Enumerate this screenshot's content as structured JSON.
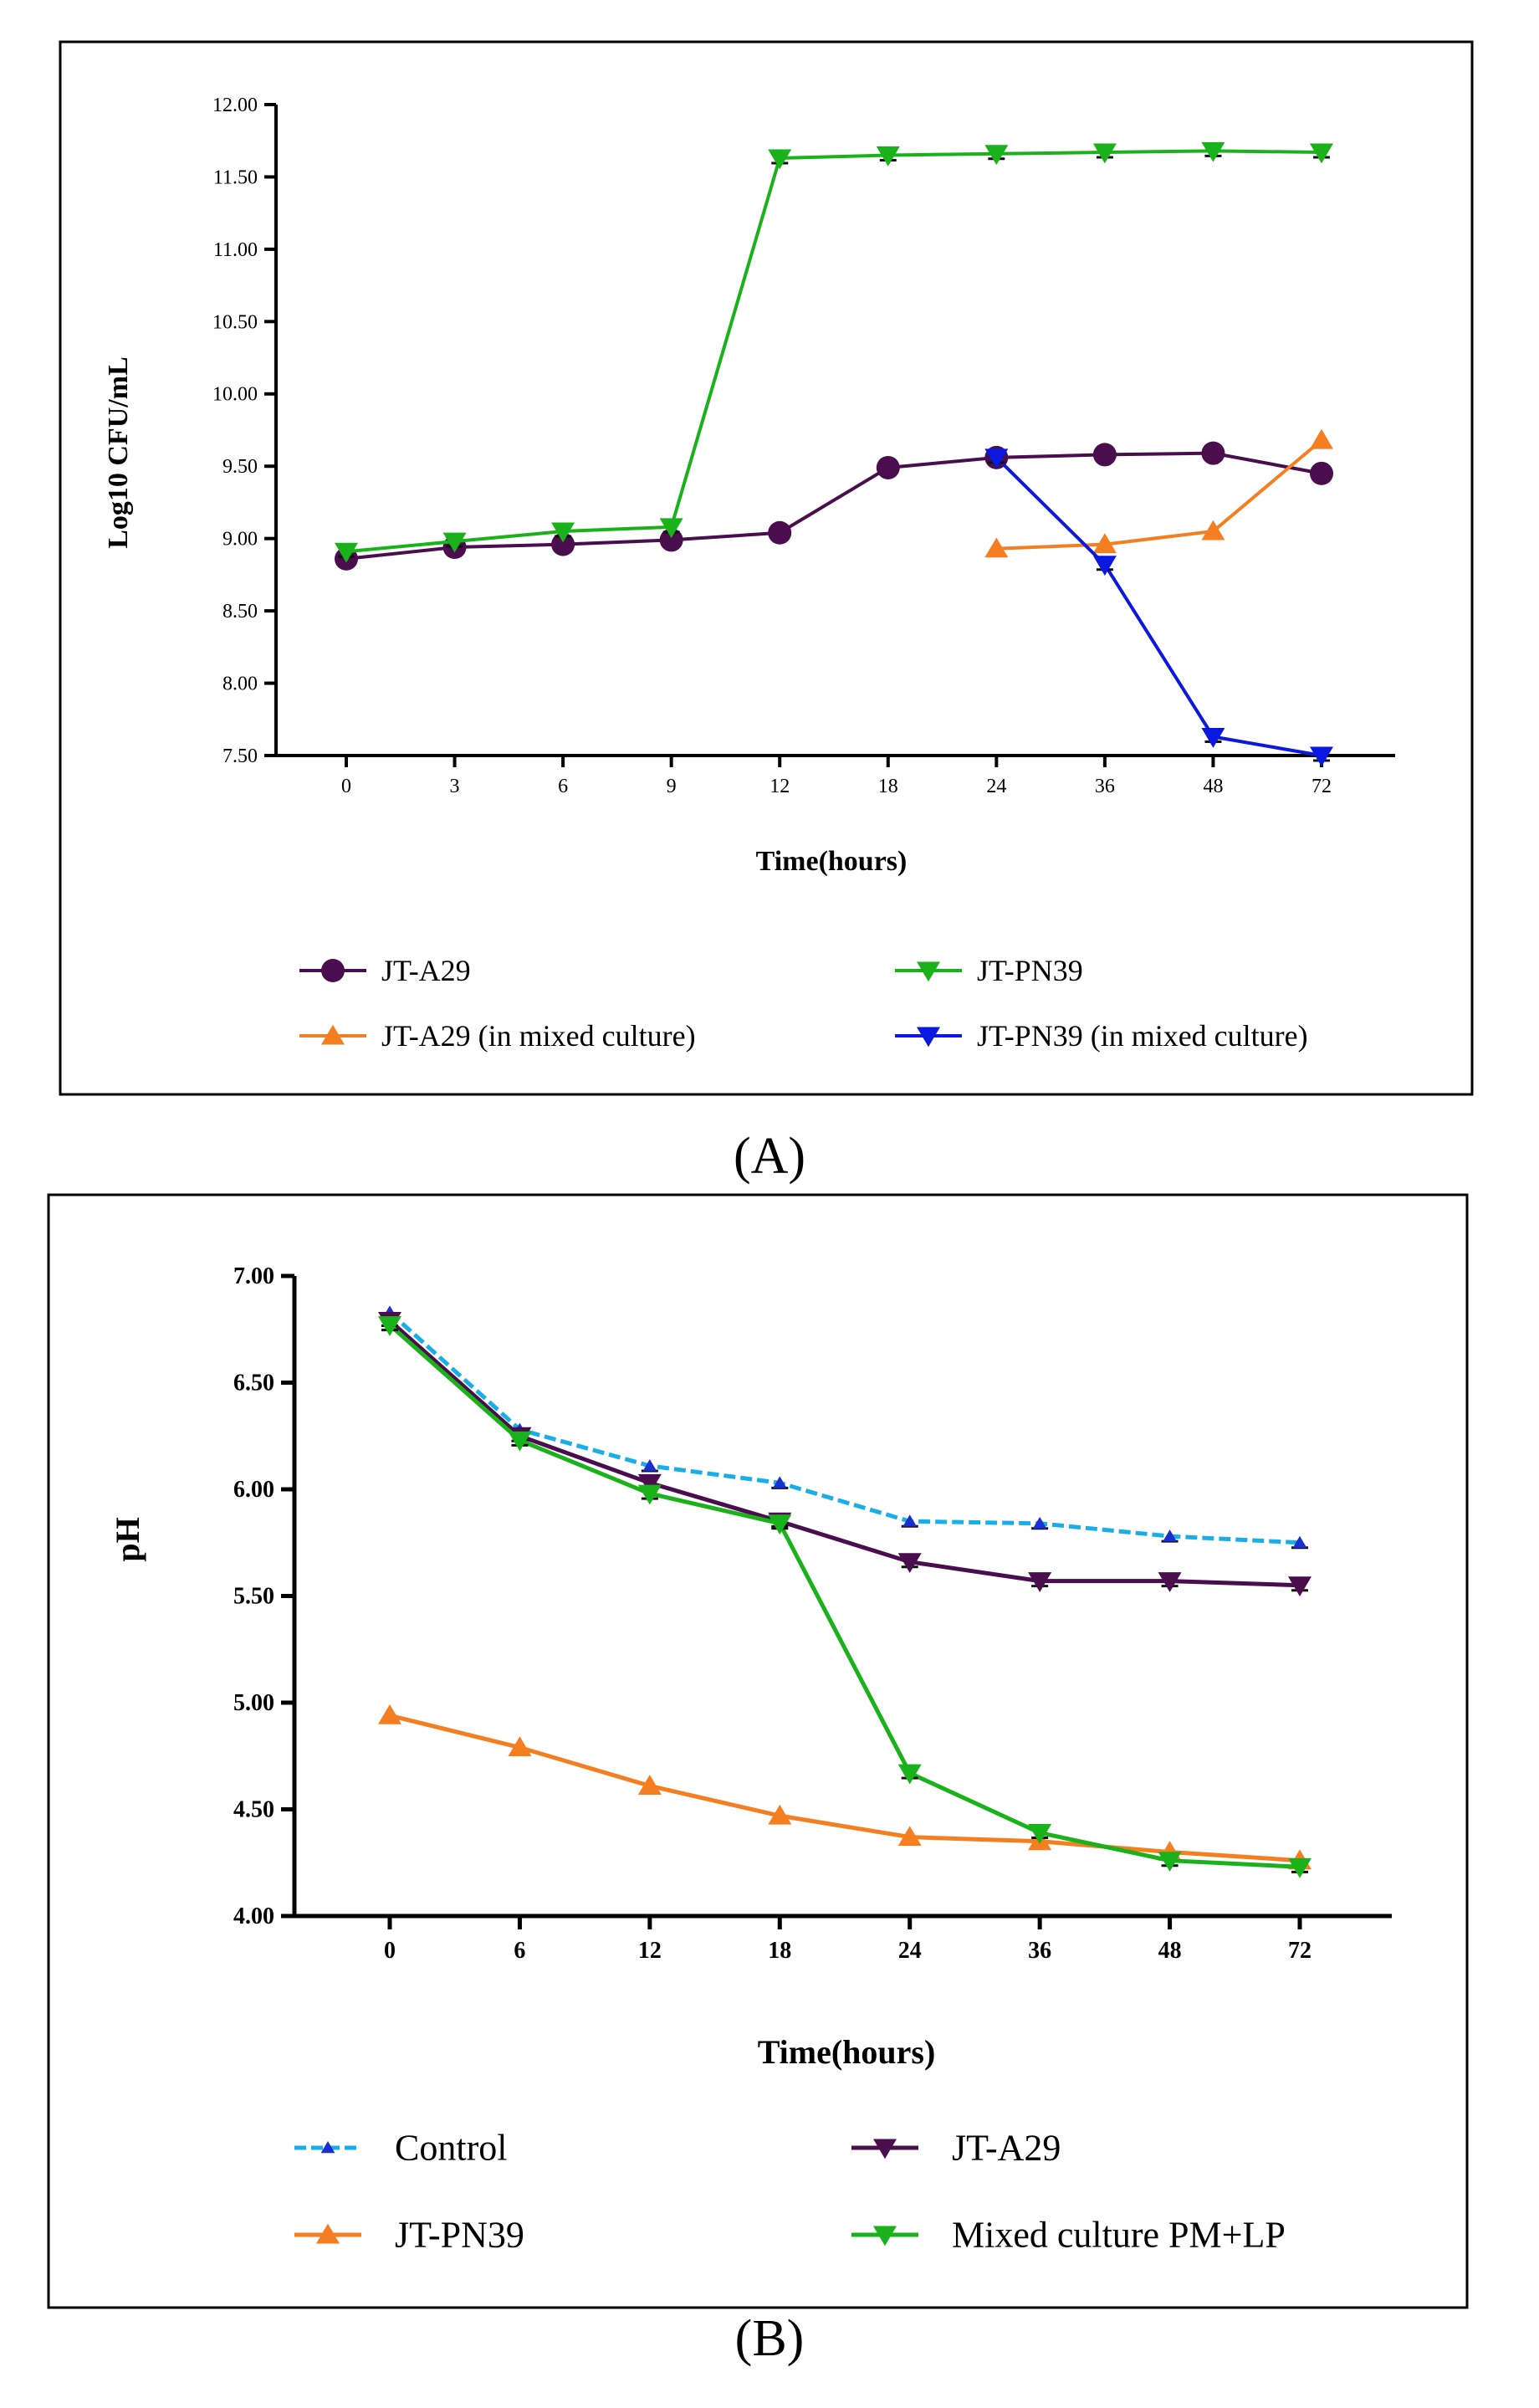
{
  "colors": {
    "jt_a29": "#4a0d4e",
    "jt_pn39": "#1ab21a",
    "jt_a29_mixed": "#f57f20",
    "jt_pn39_mixed": "#0a18e0",
    "control": "#1aaee8",
    "frame": "#000000"
  },
  "chart_data": [
    {
      "type": "line",
      "panel_label": "(A)",
      "ylabel": "Log10 CFU/mL",
      "xlabel": "Time(hours)",
      "categories": [
        "0",
        "3",
        "6",
        "9",
        "12",
        "18",
        "24",
        "36",
        "48",
        "72"
      ],
      "ylim": [
        7.5,
        12.0
      ],
      "yticks": [
        "7.50",
        "8.00",
        "8.50",
        "9.00",
        "9.50",
        "10.00",
        "10.50",
        "11.00",
        "11.50",
        "12.00"
      ],
      "grid": false,
      "legend_placement": "bottom",
      "series": [
        {
          "name": "JT-A29",
          "marker": "circle",
          "color_key": "jt_a29",
          "values": [
            8.86,
            8.94,
            8.96,
            8.99,
            9.04,
            9.49,
            9.56,
            9.58,
            9.59,
            9.45
          ]
        },
        {
          "name": "JT-PN39",
          "marker": "triangle-down",
          "color_key": "jt_pn39",
          "values": [
            8.91,
            8.98,
            9.05,
            9.08,
            11.63,
            11.65,
            11.66,
            11.67,
            11.68,
            11.67
          ]
        },
        {
          "name": "JT-A29 (in mixed culture)",
          "marker": "triangle-up",
          "color_key": "jt_a29_mixed",
          "values": [
            null,
            null,
            null,
            null,
            null,
            null,
            8.93,
            8.96,
            9.05,
            9.68
          ]
        },
        {
          "name": "JT-PN39 (in mixed culture)",
          "marker": "triangle-down",
          "color_key": "jt_pn39_mixed",
          "values": [
            null,
            null,
            null,
            null,
            null,
            null,
            9.56,
            8.82,
            7.63,
            7.5
          ]
        }
      ]
    },
    {
      "type": "line",
      "panel_label": "(B)",
      "ylabel": "pH",
      "xlabel": "Time(hours)",
      "categories": [
        "0",
        "6",
        "12",
        "18",
        "24",
        "36",
        "48",
        "72"
      ],
      "ylim": [
        4.0,
        7.0
      ],
      "yticks": [
        "4.00",
        "4.50",
        "5.00",
        "5.50",
        "6.00",
        "6.50",
        "7.00"
      ],
      "grid": false,
      "legend_placement": "bottom",
      "series": [
        {
          "name": "Control",
          "marker": "triangle-up-small",
          "color_key": "control",
          "values": [
            6.83,
            6.28,
            6.11,
            6.03,
            5.85,
            5.84,
            5.78,
            5.75
          ]
        },
        {
          "name": "JT-A29",
          "marker": "triangle-down",
          "color_key": "jt_a29",
          "values": [
            6.79,
            6.25,
            6.03,
            5.85,
            5.66,
            5.57,
            5.57,
            5.55
          ]
        },
        {
          "name": "JT-PN39",
          "marker": "triangle-up",
          "color_key": "jt_a29_mixed",
          "values": [
            4.94,
            4.79,
            4.61,
            4.47,
            4.37,
            4.35,
            4.3,
            4.26
          ]
        },
        {
          "name": "Mixed culture PM+LP",
          "marker": "triangle-down",
          "color_key": "jt_pn39",
          "values": [
            6.77,
            6.23,
            5.98,
            5.84,
            4.67,
            4.39,
            4.26,
            4.23
          ]
        }
      ]
    }
  ]
}
